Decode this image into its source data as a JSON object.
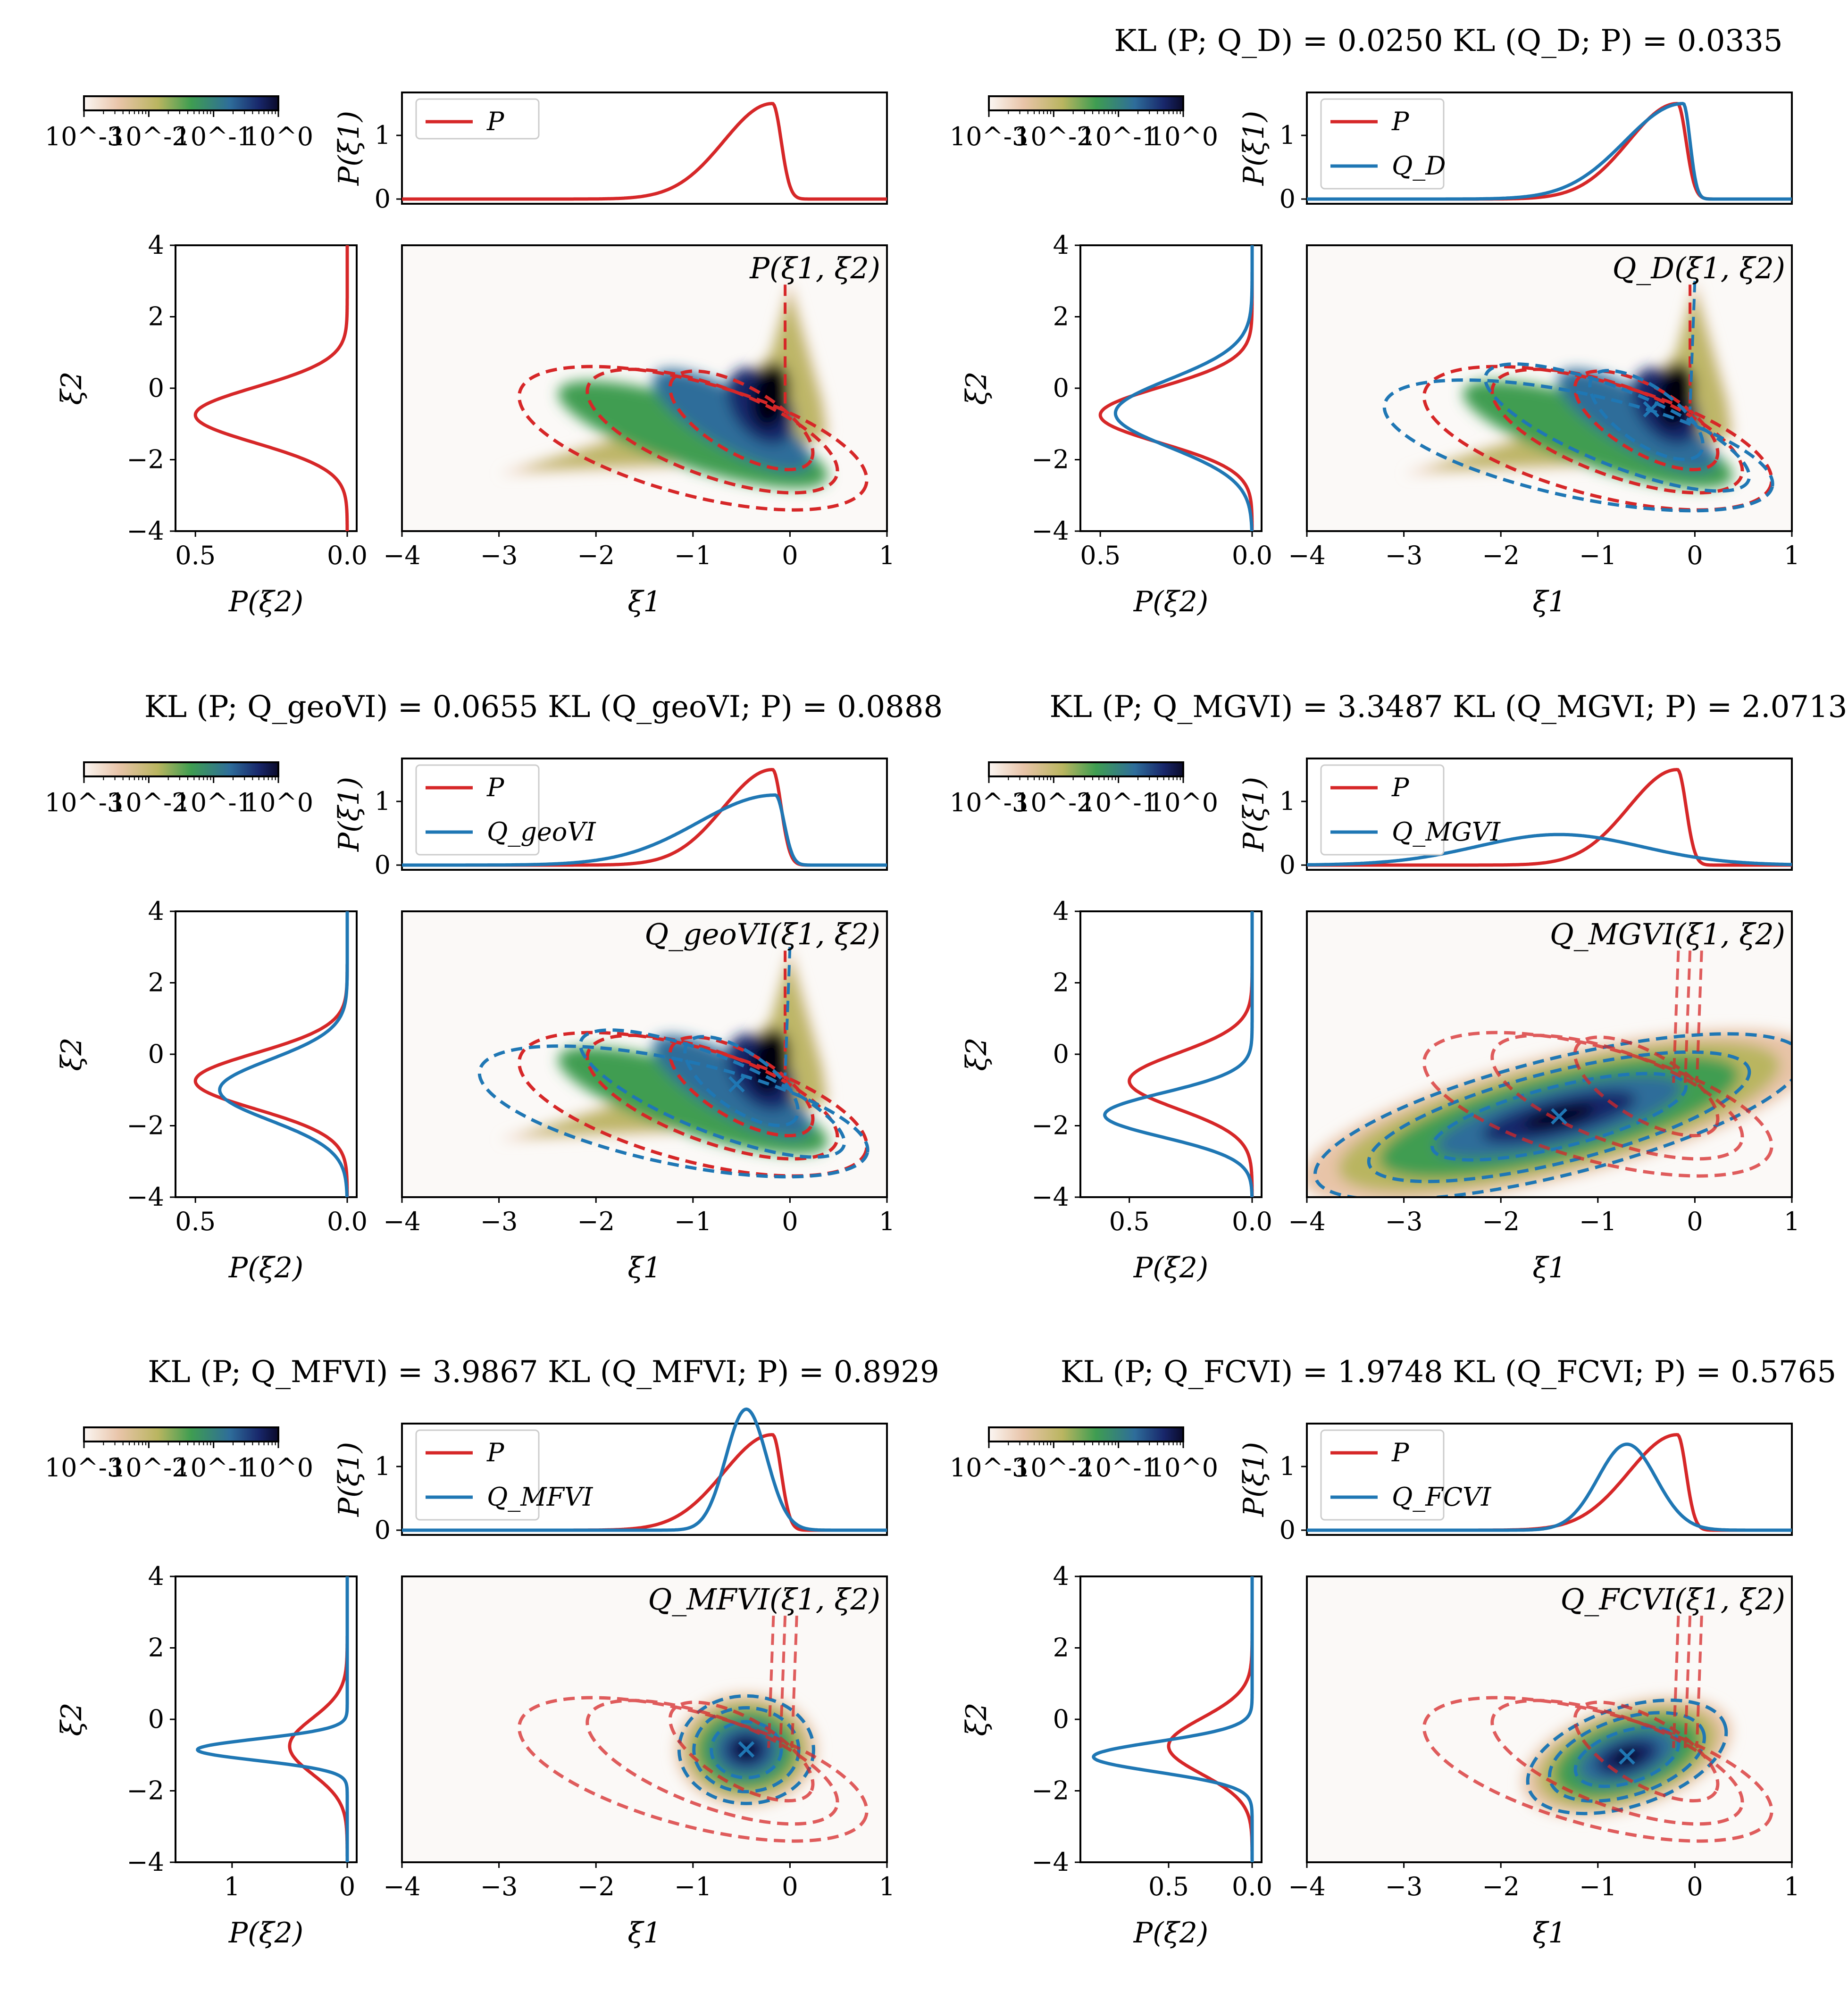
{
  "figure": {
    "panels": [
      {
        "id": "P",
        "title": "",
        "legend": [
          "P"
        ],
        "joint_label": "P(ξ1, ξ2)",
        "marg2_xticks": [
          "0.5",
          "0.0"
        ],
        "marg2_max": 0.55
      },
      {
        "id": "QD",
        "title": "KL (P; Q_D) = 0.0250    KL (Q_D; P) = 0.0335",
        "legend": [
          "P",
          "Q_D"
        ],
        "joint_label": "Q_D(ξ1, ξ2)",
        "marg2_xticks": [
          "0.5",
          "0.0"
        ],
        "marg2_max": 0.55
      },
      {
        "id": "geoVI",
        "title": "KL (P; Q_geoVI) = 0.0655    KL (Q_geoVI; P) = 0.0888",
        "legend": [
          "P",
          "Q_geoVI"
        ],
        "joint_label": "Q_geoVI(ξ1, ξ2)",
        "marg2_xticks": [
          "0.5",
          "0.0"
        ],
        "marg2_max": 0.55
      },
      {
        "id": "MGVI",
        "title": "KL (P; Q_MGVI) = 3.3487    KL (Q_MGVI; P) = 2.0713",
        "legend": [
          "P",
          "Q_MGVI"
        ],
        "joint_label": "Q_MGVI(ξ1, ξ2)",
        "marg2_xticks": [
          "0.5",
          "0.0"
        ],
        "marg2_max": 0.68
      },
      {
        "id": "MFVI",
        "title": "KL (P; Q_MFVI) = 3.9867    KL (Q_MFVI; P) = 0.8929",
        "legend": [
          "P",
          "Q_MFVI"
        ],
        "joint_label": "Q_MFVI(ξ1, ξ2)",
        "marg2_xticks": [
          "1",
          "0"
        ],
        "marg2_max": 1.45
      },
      {
        "id": "FCVI",
        "title": "KL (P; Q_FCVI) = 1.9748    KL (Q_FCVI; P) = 0.5765",
        "legend": [
          "P",
          "Q_FCVI"
        ],
        "joint_label": "Q_FCVI(ξ1, ξ2)",
        "marg2_xticks": [
          "0.5",
          "0.0"
        ],
        "marg2_max": 1.0
      }
    ],
    "colorbar_ticks": [
      "10^-3",
      "10^-2",
      "10^-1",
      "10^0"
    ],
    "axis_labels": {
      "xi1": "ξ1",
      "xi2": "ξ2",
      "p_xi1": "P(ξ1)",
      "p_xi2": "P(ξ2)"
    },
    "colors": {
      "P": "#d62728",
      "Q": "#1f77b4"
    }
  },
  "chart_data": {
    "type": "density-comparison",
    "joint_x_range": [
      -4,
      1
    ],
    "joint_y_range": [
      -4,
      4
    ],
    "joint_x_ticks": [
      -4,
      -3,
      -2,
      -1,
      0,
      1
    ],
    "joint_y_ticks": [
      -4,
      -2,
      0,
      2,
      4
    ],
    "p_xi1_y_range": [
      0,
      1.6
    ],
    "p_xi1_y_ticks": [
      0,
      1
    ],
    "marginals": {
      "P_xi1_peak": {
        "xi1": -0.18,
        "density": 1.5
      },
      "P_xi2_peak": {
        "xi2": -0.75,
        "density": 0.5
      },
      "QD_xi1_peak": {
        "xi1": -0.12,
        "density": 1.5
      },
      "QD_xi2_peak": {
        "xi2": -0.7,
        "density": 0.45
      },
      "geoVI_xi1_peak": {
        "xi1": -0.15,
        "density": 1.1
      },
      "geoVI_xi2_peak": {
        "xi2": -1.0,
        "density": 0.42
      },
      "MGVI_xi1_peak": {
        "xi1": -1.4,
        "density": 0.48
      },
      "MGVI_xi2_peak": {
        "xi2": -1.7,
        "density": 0.6
      },
      "MFVI_xi1_peak": {
        "xi1": -0.45,
        "density": 1.9
      },
      "MFVI_xi2_peak": {
        "xi2": -0.85,
        "density": 1.3
      },
      "FCVI_xi1_peak": {
        "xi1": -0.7,
        "density": 1.35
      },
      "FCVI_xi2_peak": {
        "xi2": -1.05,
        "density": 0.95
      }
    },
    "modes": {
      "QD": [
        -0.45,
        -0.6
      ],
      "geoVI": [
        -0.55,
        -0.85
      ],
      "MGVI": [
        -1.4,
        -1.75
      ],
      "MFVI": [
        -0.45,
        -0.85
      ],
      "FCVI": [
        -0.7,
        -1.05
      ]
    }
  }
}
